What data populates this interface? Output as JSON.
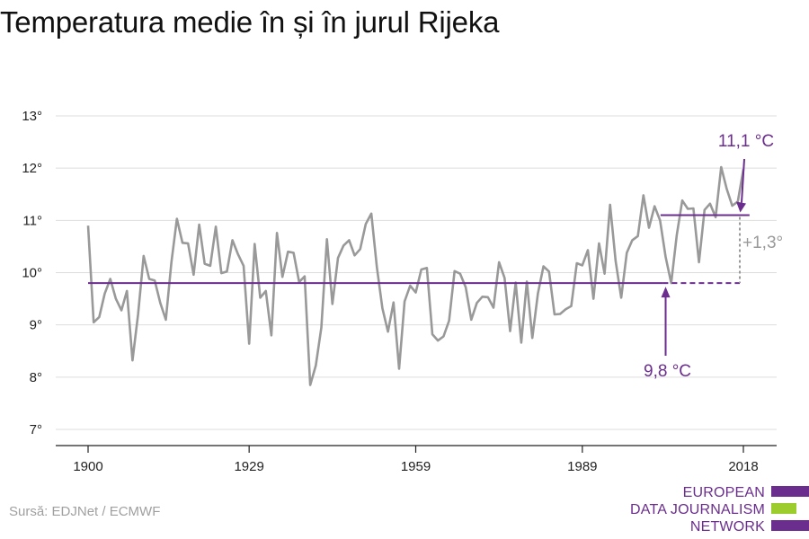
{
  "title": "Temperatura medie în și în jurul Rijeka",
  "source": "Sursă: EDJNet / ECMWF",
  "logo": {
    "lines": [
      "EUROPEAN",
      "DATA JOURNALISM",
      "NETWORK"
    ],
    "colors": {
      "purple": "#6b2d8e",
      "green": "#9ccc2e"
    }
  },
  "colors": {
    "line": "#999999",
    "baseline": "#6b2d8e",
    "diff": "#999999",
    "grid": "#dddddd",
    "axis": "#222222"
  },
  "chart_data": {
    "type": "line",
    "title": "Temperatura medie în și în jurul Rijeka",
    "xlabel": "",
    "ylabel": "",
    "xlim": [
      1900,
      2018
    ],
    "ylim": [
      7,
      13
    ],
    "x_ticks": [
      1900,
      1929,
      1959,
      1989,
      2018
    ],
    "x_tick_labels": [
      "1900",
      "1929",
      "1959",
      "1989",
      "2018"
    ],
    "y_ticks": [
      7,
      8,
      9,
      10,
      11,
      12,
      13
    ],
    "y_tick_labels": [
      "7°",
      "8°",
      "9°",
      "10°",
      "11°",
      "12°",
      "13°"
    ],
    "grid": true,
    "series": [
      {
        "x_start": 1900,
        "x_step": 1,
        "values": [
          10.9,
          9.05,
          9.15,
          9.6,
          9.88,
          9.5,
          9.28,
          9.65,
          8.32,
          9.2,
          10.32,
          9.88,
          9.85,
          9.42,
          9.1,
          10.2,
          11.03,
          10.57,
          10.56,
          9.96,
          10.92,
          10.17,
          10.13,
          10.88,
          9.99,
          10.02,
          10.62,
          10.35,
          10.13,
          8.64,
          10.55,
          9.52,
          9.65,
          8.8,
          10.76,
          9.92,
          10.4,
          10.38,
          9.82,
          9.93,
          7.85,
          8.22,
          8.95,
          10.64,
          9.4,
          10.28,
          10.52,
          10.62,
          10.33,
          10.45,
          10.93,
          11.13,
          10.1,
          9.32,
          8.87,
          9.43,
          8.16,
          9.45,
          9.75,
          9.62,
          10.06,
          10.09,
          8.82,
          8.7,
          8.78,
          9.08,
          10.03,
          9.98,
          9.72,
          9.1,
          9.42,
          9.54,
          9.53,
          9.33,
          10.2,
          9.9,
          8.88,
          9.81,
          8.66,
          9.83,
          8.75,
          9.6,
          10.12,
          10.02,
          9.2,
          9.21,
          9.3,
          9.36,
          10.18,
          10.14,
          10.43,
          9.5,
          10.56,
          9.98,
          11.3,
          10.22,
          9.52,
          10.38,
          10.62,
          10.7,
          11.48,
          10.86,
          11.27,
          11.0,
          10.3,
          9.8,
          10.72,
          11.38,
          11.22,
          11.23,
          10.2,
          11.2,
          11.32,
          11.06,
          12.02,
          11.6,
          11.28,
          11.36,
          11.98
        ]
      }
    ],
    "baseline": {
      "value": 9.8,
      "label": "9,8 °C"
    },
    "recent": {
      "value": 11.1,
      "label": "11,1 °C",
      "from": 2003,
      "to": 2017
    },
    "difference": {
      "value": 1.3,
      "label": "+1,3°"
    }
  }
}
